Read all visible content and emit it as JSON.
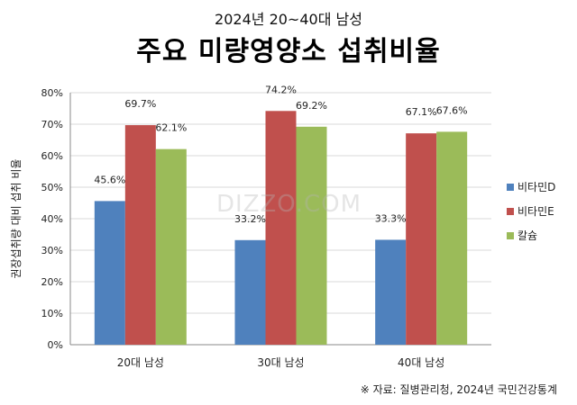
{
  "header": {
    "subtitle": "2024년 20~40대 남성",
    "title": "주요 미량영양소 섭취비율"
  },
  "watermark": "DIZZO.COM",
  "source": "※ 자료: 질병관리청, 2024년 국민건강통계",
  "chart_data": {
    "type": "bar",
    "title": "주요 미량영양소 섭취비율",
    "subtitle": "2024년 20~40대 남성",
    "xlabel": "",
    "ylabel": "권장섭취량 대비 섭취 비율",
    "ylim": [
      0,
      80
    ],
    "yticks": [
      "0%",
      "10%",
      "20%",
      "30%",
      "40%",
      "50%",
      "60%",
      "70%",
      "80%"
    ],
    "categories": [
      "20대 남성",
      "30대 남성",
      "40대 남성"
    ],
    "series": [
      {
        "name": "비타민D",
        "values": [
          45.6,
          33.2,
          33.3
        ],
        "labels": [
          "45.6%",
          "33.2%",
          "33.3%"
        ],
        "color": "#4F81BD"
      },
      {
        "name": "비타민E",
        "values": [
          69.7,
          74.2,
          67.1
        ],
        "labels": [
          "69.7%",
          "74.2%",
          "67.1%"
        ],
        "color": "#C0504D"
      },
      {
        "name": "칼슘",
        "values": [
          62.1,
          69.2,
          67.6
        ],
        "labels": [
          "62.1%",
          "69.2%",
          "67.6%"
        ],
        "color": "#9BBB59"
      }
    ],
    "grid": true,
    "legend_position": "right"
  }
}
